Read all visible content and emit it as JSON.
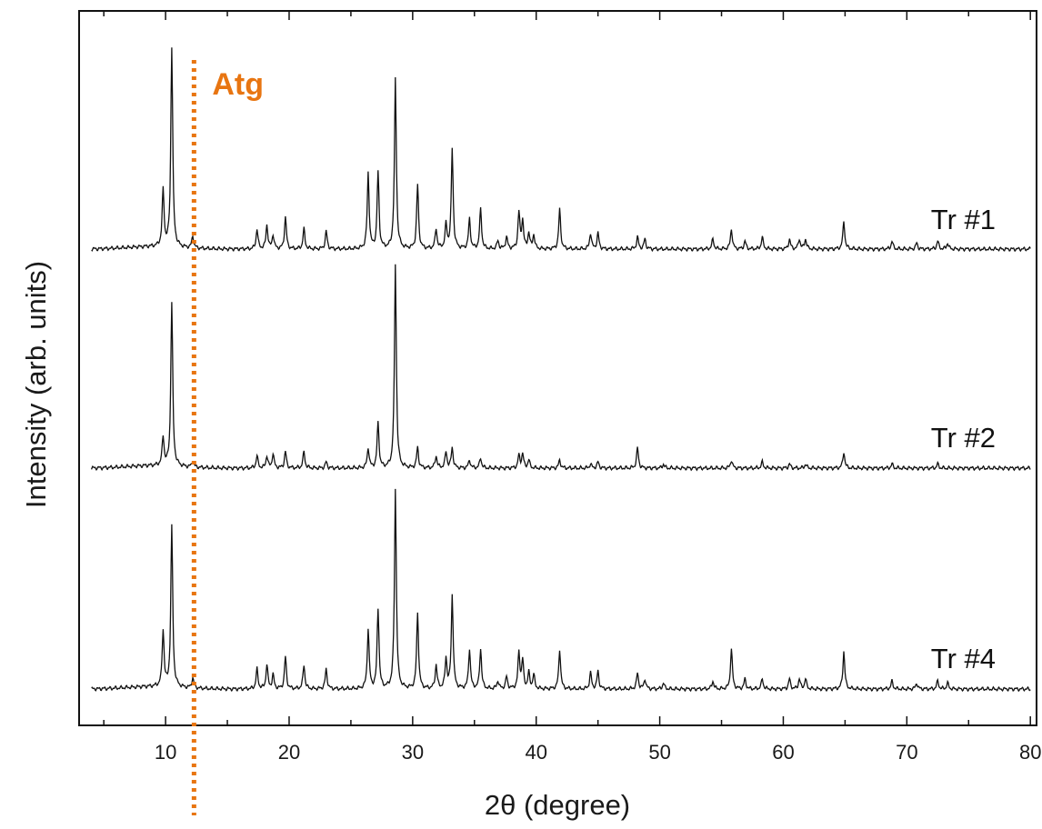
{
  "chart_data": {
    "type": "line",
    "xlabel": "2θ (degree)",
    "ylabel": "Intensity (arb. units)",
    "xlim": [
      3,
      80.5
    ],
    "x_ticks": [
      10,
      20,
      30,
      40,
      50,
      60,
      70,
      80
    ],
    "y_tick_labels": false,
    "grid": false,
    "series": [
      {
        "name": "Tr #1",
        "baseline": 0.05,
        "peaks": [
          [
            9.8,
            0.28
          ],
          [
            10.5,
            1.0
          ],
          [
            12.2,
            0.06
          ],
          [
            17.4,
            0.1
          ],
          [
            18.2,
            0.12
          ],
          [
            18.7,
            0.07
          ],
          [
            19.7,
            0.16
          ],
          [
            21.2,
            0.1
          ],
          [
            23.0,
            0.09
          ],
          [
            26.4,
            0.38
          ],
          [
            27.2,
            0.38
          ],
          [
            28.6,
            0.85
          ],
          [
            30.4,
            0.32
          ],
          [
            31.9,
            0.1
          ],
          [
            32.7,
            0.12
          ],
          [
            33.2,
            0.5
          ],
          [
            34.6,
            0.15
          ],
          [
            35.5,
            0.2
          ],
          [
            36.9,
            0.04
          ],
          [
            37.6,
            0.06
          ],
          [
            38.6,
            0.18
          ],
          [
            38.9,
            0.14
          ],
          [
            39.4,
            0.08
          ],
          [
            39.8,
            0.07
          ],
          [
            41.9,
            0.2
          ],
          [
            44.4,
            0.08
          ],
          [
            45.0,
            0.08
          ],
          [
            48.2,
            0.06
          ],
          [
            48.8,
            0.05
          ],
          [
            54.3,
            0.05
          ],
          [
            55.8,
            0.1
          ],
          [
            56.9,
            0.04
          ],
          [
            58.3,
            0.06
          ],
          [
            60.5,
            0.05
          ],
          [
            61.3,
            0.05
          ],
          [
            61.8,
            0.05
          ],
          [
            64.9,
            0.14
          ],
          [
            68.8,
            0.04
          ],
          [
            70.8,
            0.03
          ],
          [
            72.5,
            0.04
          ],
          [
            73.3,
            0.03
          ]
        ]
      },
      {
        "name": "Tr #2",
        "baseline": 0.02,
        "peaks": [
          [
            9.8,
            0.14
          ],
          [
            10.5,
            0.8
          ],
          [
            12.2,
            0.03
          ],
          [
            17.4,
            0.06
          ],
          [
            18.2,
            0.06
          ],
          [
            18.7,
            0.07
          ],
          [
            19.7,
            0.08
          ],
          [
            21.2,
            0.08
          ],
          [
            23.0,
            0.03
          ],
          [
            26.4,
            0.1
          ],
          [
            27.2,
            0.22
          ],
          [
            28.6,
            1.0
          ],
          [
            30.4,
            0.1
          ],
          [
            31.9,
            0.06
          ],
          [
            32.7,
            0.08
          ],
          [
            33.2,
            0.1
          ],
          [
            34.6,
            0.04
          ],
          [
            35.5,
            0.05
          ],
          [
            38.6,
            0.06
          ],
          [
            38.9,
            0.07
          ],
          [
            39.4,
            0.04
          ],
          [
            41.9,
            0.04
          ],
          [
            44.4,
            0.02
          ],
          [
            45.0,
            0.03
          ],
          [
            48.2,
            0.1
          ],
          [
            50.3,
            0.02
          ],
          [
            55.8,
            0.04
          ],
          [
            58.3,
            0.03
          ],
          [
            60.5,
            0.02
          ],
          [
            61.8,
            0.02
          ],
          [
            64.9,
            0.08
          ],
          [
            68.8,
            0.02
          ],
          [
            72.5,
            0.02
          ]
        ]
      },
      {
        "name": "Tr #4",
        "baseline": 0.05,
        "peaks": [
          [
            9.8,
            0.28
          ],
          [
            10.5,
            0.8
          ],
          [
            12.2,
            0.05
          ],
          [
            17.4,
            0.1
          ],
          [
            18.2,
            0.12
          ],
          [
            18.7,
            0.07
          ],
          [
            19.7,
            0.16
          ],
          [
            21.2,
            0.12
          ],
          [
            23.0,
            0.1
          ],
          [
            26.4,
            0.3
          ],
          [
            27.2,
            0.4
          ],
          [
            28.6,
            1.0
          ],
          [
            30.4,
            0.38
          ],
          [
            31.9,
            0.12
          ],
          [
            32.7,
            0.15
          ],
          [
            33.2,
            0.47
          ],
          [
            34.6,
            0.2
          ],
          [
            35.5,
            0.2
          ],
          [
            36.9,
            0.04
          ],
          [
            37.6,
            0.06
          ],
          [
            38.6,
            0.18
          ],
          [
            38.9,
            0.14
          ],
          [
            39.4,
            0.08
          ],
          [
            39.8,
            0.07
          ],
          [
            41.9,
            0.2
          ],
          [
            44.4,
            0.08
          ],
          [
            45.0,
            0.09
          ],
          [
            48.2,
            0.08
          ],
          [
            48.8,
            0.05
          ],
          [
            50.3,
            0.03
          ],
          [
            54.3,
            0.04
          ],
          [
            55.8,
            0.2
          ],
          [
            56.9,
            0.05
          ],
          [
            58.3,
            0.05
          ],
          [
            60.5,
            0.05
          ],
          [
            61.3,
            0.05
          ],
          [
            61.8,
            0.05
          ],
          [
            64.9,
            0.19
          ],
          [
            68.8,
            0.04
          ],
          [
            70.8,
            0.03
          ],
          [
            72.5,
            0.04
          ],
          [
            73.3,
            0.03
          ]
        ]
      }
    ],
    "annotations": [
      {
        "text": "Atg",
        "x": 12.3,
        "style": "dotted vertical line",
        "color": "#e87511"
      }
    ]
  }
}
